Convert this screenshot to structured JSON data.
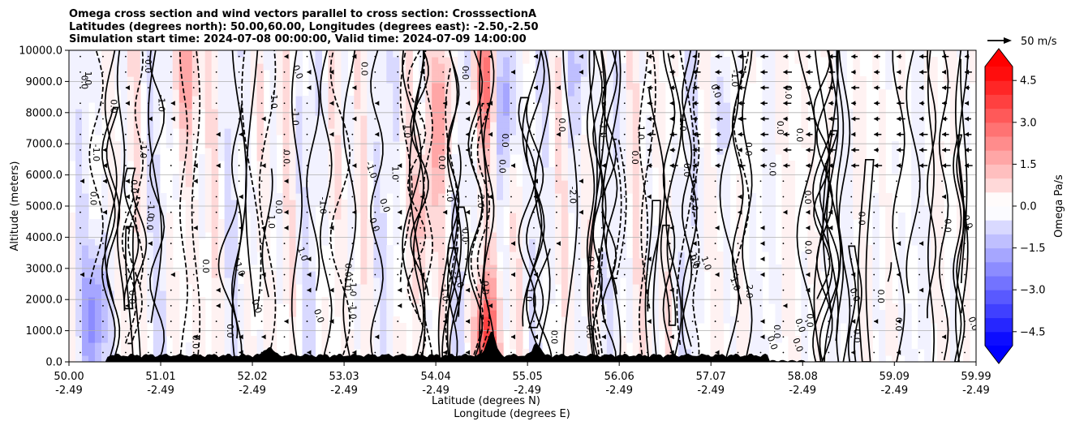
{
  "chart_data": {
    "type": "filled-contour cross section with line contours and wind vectors",
    "title_lines": [
      "Omega cross section and wind vectors parallel to cross section: CrosssectionA",
      "Latitudes (degrees north): 50.00,60.00, Longitudes (degrees east): -2.50,-2.50",
      "Simulation start time: 2024-07-08 00:00:00, Valid time: 2024-07-09 14:00:00"
    ],
    "ylabel": "Altitude (meters)",
    "xlabel_line1": "Latitude (degrees N)",
    "xlabel_line2": "Longitude (degrees E)",
    "ylim": [
      0,
      10000
    ],
    "y_ticks": [
      {
        "value": 0,
        "label": "0.0"
      },
      {
        "value": 1000,
        "label": "1000.0"
      },
      {
        "value": 2000,
        "label": "2000.0"
      },
      {
        "value": 3000,
        "label": "3000.0"
      },
      {
        "value": 4000,
        "label": "4000.0"
      },
      {
        "value": 5000,
        "label": "5000.0"
      },
      {
        "value": 6000,
        "label": "6000.0"
      },
      {
        "value": 7000,
        "label": "7000.0"
      },
      {
        "value": 8000,
        "label": "8000.0"
      },
      {
        "value": 9000,
        "label": "9000.0"
      },
      {
        "value": 10000,
        "label": "10000.0"
      }
    ],
    "xlim": [
      50.0,
      59.99
    ],
    "x_ticks": [
      {
        "value": 50.0,
        "lat": "50.00",
        "lon": "-2.49"
      },
      {
        "value": 51.01,
        "lat": "51.01",
        "lon": "-2.49"
      },
      {
        "value": 52.02,
        "lat": "52.02",
        "lon": "-2.49"
      },
      {
        "value": 53.03,
        "lat": "53.03",
        "lon": "-2.49"
      },
      {
        "value": 54.04,
        "lat": "54.04",
        "lon": "-2.49"
      },
      {
        "value": 55.05,
        "lat": "55.05",
        "lon": "-2.49"
      },
      {
        "value": 56.06,
        "lat": "56.06",
        "lon": "-2.49"
      },
      {
        "value": 57.07,
        "lat": "57.07",
        "lon": "-2.49"
      },
      {
        "value": 58.08,
        "lat": "58.08",
        "lon": "-2.49"
      },
      {
        "value": 59.09,
        "lat": "59.09",
        "lon": "-2.49"
      },
      {
        "value": 59.99,
        "lat": "59.99",
        "lon": "-2.49"
      }
    ],
    "grid": "horizontal",
    "colorbar": {
      "label": "Omega Pa/s",
      "range": [
        -5.0,
        5.0
      ],
      "ticks": [
        {
          "value": 4.5,
          "label": "4.5"
        },
        {
          "value": 3.0,
          "label": "3.0"
        },
        {
          "value": 1.5,
          "label": "1.5"
        },
        {
          "value": 0.0,
          "label": "0.0"
        },
        {
          "value": -1.5,
          "label": "−1.5"
        },
        {
          "value": -3.0,
          "label": "−3.0"
        },
        {
          "value": -4.5,
          "label": "−4.5"
        }
      ],
      "levels": [
        -5.0,
        -4.5,
        -4.0,
        -3.5,
        -3.0,
        -2.5,
        -2.0,
        -1.5,
        -1.0,
        -0.5,
        0.0,
        0.5,
        1.0,
        1.5,
        2.0,
        2.5,
        3.0,
        3.5,
        4.0,
        4.5,
        5.0
      ],
      "colormap": "bwr",
      "extend": "both"
    },
    "quiver_key": {
      "label": "50 m/s",
      "value": 50
    },
    "contour_line_labels": [
      "0.0",
      "-1.0",
      "1.0",
      "2.0",
      "-2.0",
      "-3.0"
    ],
    "omega_features": [
      {
        "lat": 50.3,
        "alt": 1500,
        "omega": -3.0
      },
      {
        "lat": 51.3,
        "alt": 9500,
        "omega": 2.0
      },
      {
        "lat": 53.9,
        "alt": 5000,
        "omega": 1.5
      },
      {
        "lat": 54.1,
        "alt": 8000,
        "omega": 2.0
      },
      {
        "lat": 54.6,
        "alt": 9000,
        "omega": 3.0
      },
      {
        "lat": 54.6,
        "alt": 500,
        "omega": 4.5
      },
      {
        "lat": 54.8,
        "alt": 8500,
        "omega": -2.5
      },
      {
        "lat": 55.6,
        "alt": 9500,
        "omega": -1.5
      },
      {
        "lat": 57.2,
        "alt": 8000,
        "omega": -1.5
      }
    ],
    "terrain_peak": {
      "lat": 54.65,
      "alt": 1000
    }
  }
}
